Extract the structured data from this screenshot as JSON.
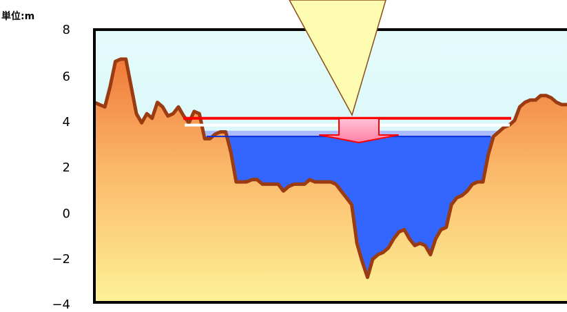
{
  "unit_label": "単位:m",
  "colors": {
    "sky_top": "#e4fbfb",
    "sky_bottom": "#cdf3f7",
    "ground_top": "#f07a3a",
    "ground_mid": "#fbb96b",
    "ground_bottom": "#fdf59a",
    "ground_outline": "#9a3b12",
    "water": "#3366ff",
    "water_light": "#aabbff",
    "red_line": "#ff0000",
    "arrow_fill": "#ff99bb",
    "beam_fill": "#fdfcb0",
    "beam_outline": "#8a4a16",
    "frame": "#000000"
  },
  "chart_data": {
    "type": "area",
    "title": "",
    "xlabel": "",
    "ylabel": "",
    "unit": "m",
    "ylim": [
      -4,
      8
    ],
    "yticks": [
      "8",
      "6",
      "4",
      "2",
      "0",
      "−4"
    ],
    "ytick_values": [
      8,
      6,
      4,
      2,
      0,
      -4
    ],
    "ytick_minus2_label": "−2",
    "grid": false,
    "series": [
      {
        "role": "ground-profile",
        "values": [
          4.8,
          4.7,
          4.6,
          5.5,
          6.6,
          6.7,
          6.7,
          5.5,
          4.3,
          3.9,
          4.3,
          4.1,
          4.8,
          4.6,
          4.2,
          4.3,
          4.6,
          4.2,
          3.9,
          4.4,
          4.3,
          3.2,
          3.2,
          3.4,
          3.5,
          3.5,
          2.6,
          1.3,
          1.3,
          1.3,
          1.4,
          1.4,
          1.2,
          1.2,
          1.2,
          1.2,
          0.9,
          1.1,
          1.2,
          1.2,
          1.2,
          1.4,
          1.3,
          1.3,
          1.3,
          1.3,
          1.2,
          0.9,
          0.6,
          0.3,
          -1.4,
          -2.2,
          -2.9,
          -2.1,
          -1.9,
          -1.8,
          -1.6,
          -1.2,
          -0.9,
          -0.8,
          -1.2,
          -1.5,
          -1.4,
          -1.5,
          -1.9,
          -1.2,
          -0.8,
          -0.7,
          0.3,
          0.6,
          0.7,
          0.9,
          1.2,
          1.3,
          1.3,
          2.5,
          3.3,
          3.5,
          3.7,
          3.8,
          4.0,
          4.6,
          4.8,
          4.9,
          4.9,
          5.1,
          5.1,
          5.0,
          4.8,
          4.7,
          4.7
        ]
      }
    ],
    "water_level_red": 4.1,
    "water_level_white": 3.8,
    "water_level_blue_top": 3.55,
    "water_level_blue_line": 3.3
  }
}
